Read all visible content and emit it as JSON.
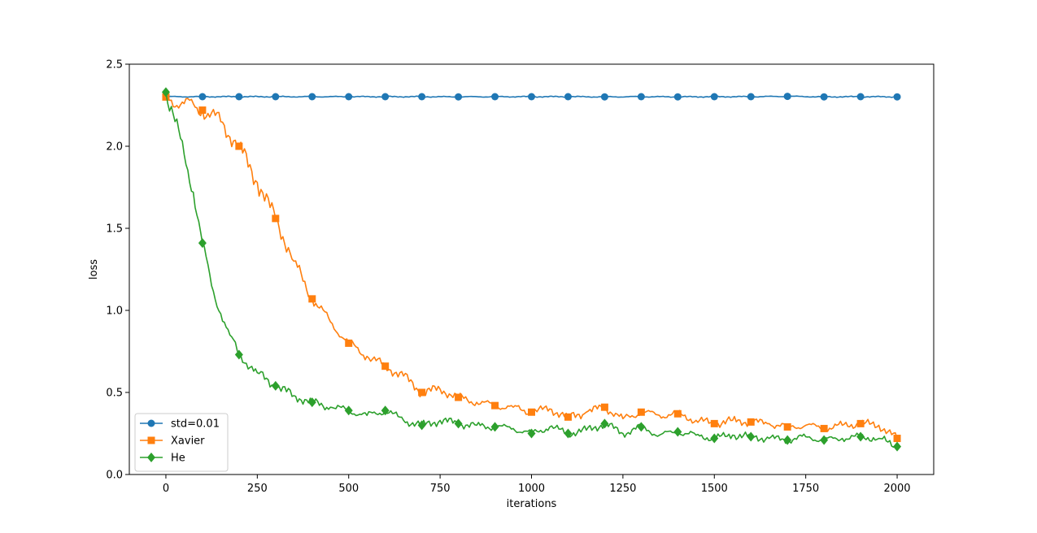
{
  "chart_data": {
    "type": "line",
    "title": "",
    "xlabel": "iterations",
    "ylabel": "loss",
    "xlim": [
      -100,
      2100
    ],
    "ylim": [
      0.0,
      2.5
    ],
    "xticks": [
      0,
      250,
      500,
      750,
      1000,
      1250,
      1500,
      1750,
      2000
    ],
    "yticks": [
      0.0,
      0.5,
      1.0,
      1.5,
      2.0,
      2.5
    ],
    "xtick_labels": [
      "0",
      "250",
      "500",
      "750",
      "1000",
      "1250",
      "1500",
      "1750",
      "2000"
    ],
    "ytick_labels": [
      "0.0",
      "0.5",
      "1.0",
      "1.5",
      "2.0",
      "2.5"
    ],
    "grid": false,
    "legend": {
      "position": "lower-left"
    },
    "series": [
      {
        "name": "std=0.01",
        "color": "#1f77b4",
        "marker": "circle",
        "x": [
          0,
          100,
          200,
          300,
          400,
          500,
          600,
          700,
          800,
          900,
          1000,
          1100,
          1200,
          1300,
          1400,
          1500,
          1600,
          1700,
          1800,
          1900,
          2000
        ],
        "y": [
          2.302,
          2.302,
          2.302,
          2.302,
          2.302,
          2.302,
          2.302,
          2.302,
          2.301,
          2.302,
          2.302,
          2.302,
          2.301,
          2.302,
          2.301,
          2.302,
          2.302,
          2.304,
          2.301,
          2.302,
          2.301
        ]
      },
      {
        "name": "Xavier",
        "color": "#ff7f0e",
        "marker": "square",
        "x": [
          0,
          50,
          100,
          150,
          200,
          250,
          300,
          350,
          400,
          450,
          500,
          550,
          600,
          650,
          700,
          750,
          800,
          850,
          900,
          950,
          1000,
          1050,
          1100,
          1150,
          1200,
          1250,
          1300,
          1350,
          1400,
          1450,
          1500,
          1550,
          1600,
          1650,
          1700,
          1750,
          1800,
          1850,
          1900,
          1950,
          2000
        ],
        "y": [
          2.3,
          2.26,
          2.22,
          2.15,
          2.0,
          1.78,
          1.56,
          1.3,
          1.07,
          0.93,
          0.8,
          0.72,
          0.66,
          0.6,
          0.5,
          0.52,
          0.47,
          0.44,
          0.42,
          0.41,
          0.38,
          0.4,
          0.35,
          0.38,
          0.41,
          0.34,
          0.38,
          0.36,
          0.37,
          0.33,
          0.31,
          0.33,
          0.32,
          0.31,
          0.29,
          0.3,
          0.28,
          0.3,
          0.31,
          0.3,
          0.22
        ]
      },
      {
        "name": "He",
        "color": "#2ca02c",
        "marker": "diamond",
        "x": [
          0,
          25,
          50,
          75,
          100,
          125,
          150,
          175,
          200,
          250,
          300,
          350,
          400,
          450,
          500,
          550,
          600,
          650,
          700,
          750,
          800,
          850,
          900,
          950,
          1000,
          1050,
          1100,
          1150,
          1200,
          1250,
          1300,
          1350,
          1400,
          1450,
          1500,
          1550,
          1600,
          1650,
          1700,
          1750,
          1800,
          1850,
          1900,
          1950,
          2000
        ],
        "y": [
          2.33,
          2.15,
          1.95,
          1.72,
          1.41,
          1.15,
          0.98,
          0.85,
          0.73,
          0.62,
          0.54,
          0.48,
          0.44,
          0.41,
          0.39,
          0.36,
          0.39,
          0.33,
          0.3,
          0.33,
          0.31,
          0.3,
          0.29,
          0.28,
          0.25,
          0.29,
          0.25,
          0.27,
          0.31,
          0.25,
          0.29,
          0.24,
          0.26,
          0.24,
          0.22,
          0.24,
          0.23,
          0.22,
          0.21,
          0.23,
          0.21,
          0.22,
          0.23,
          0.22,
          0.17
        ]
      },
      {
        "name": "",
        "color": "",
        "marker": "",
        "x": [],
        "y": []
      }
    ]
  }
}
